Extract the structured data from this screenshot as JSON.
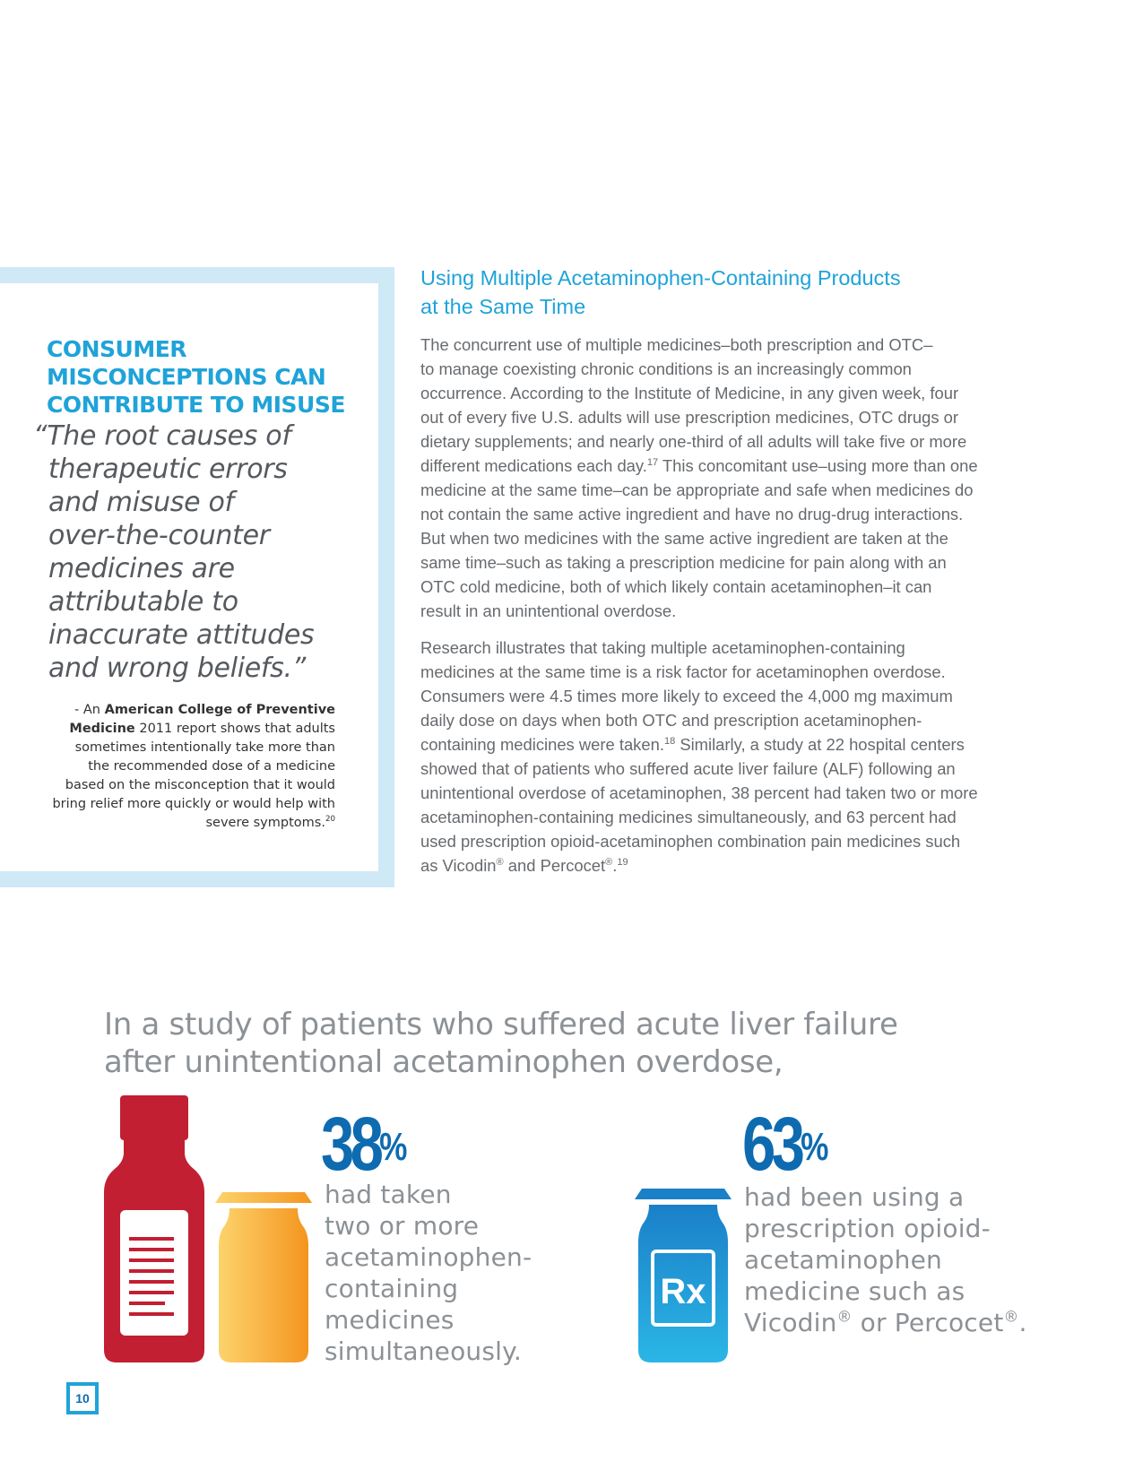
{
  "sidebar": {
    "heading_lines": [
      "CONSUMER",
      "MISCONCEPTIONS CAN",
      "CONTRIBUTE TO MISUSE"
    ],
    "quote_lines": [
      "“The root causes of",
      "therapeutic errors",
      "and misuse of",
      "over-the-counter",
      "medicines are",
      "attributable to",
      "inaccurate attitudes",
      "and wrong beliefs.”"
    ],
    "attribution": {
      "prefix": "- An ",
      "org": "American College of Preventive Medicine",
      "line1_rest": " 2011 report shows that adults",
      "lines": [
        "sometimes intentionally take more than",
        "the recommended dose of a medicine",
        "based on the misconception that it would",
        "bring relief more quickly or would help with",
        "severe symptoms."
      ],
      "footnote": "20"
    }
  },
  "article": {
    "title_lines": [
      "Using Multiple Acetaminophen-Containing Products",
      "at the Same Time"
    ],
    "p1": [
      "The concurrent use of multiple medicines–both prescription and OTC–",
      "to manage coexisting chronic conditions is an increasingly common",
      "occurrence. According to the Institute of Medicine, in any given week, four",
      "out of every five U.S. adults will use prescription medicines, OTC drugs or",
      "dietary supplements; and nearly one-third of all adults will take five or more"
    ],
    "p1_l6a": "different medications each day.",
    "p1_fn17": "17",
    "p1_l6b": " This concomitant use–using more than one",
    "p1_rest": [
      "medicine at the same time–can be appropriate and safe when medicines do",
      "not contain the same active ingredient and have no drug-drug interactions.",
      "But when two medicines with the same active ingredient are taken at the",
      "same time–such as taking a prescription medicine for pain along with an",
      "OTC cold medicine, both of which likely contain acetaminophen–it can",
      "result in an unintentional overdose."
    ],
    "p2": [
      "Research illustrates that taking multiple acetaminophen-containing",
      "medicines at the same time is a risk factor for acetaminophen overdose.",
      "Consumers were 4.5 times more likely to exceed the 4,000 mg maximum",
      "daily dose on days when both OTC and prescription acetaminophen-"
    ],
    "p2_l5a": "containing medicines were taken.",
    "p2_fn18": "18",
    "p2_l5b": " Similarly, a study at 22 hospital centers",
    "p2_rest": [
      "showed that of patients who suffered acute liver failure (ALF) following an",
      "unintentional overdose of acetaminophen, 38 percent had taken two or more",
      "acetaminophen-containing medicines simultaneously, and 63 percent had",
      "used prescription opioid-acetaminophen combination pain medicines such"
    ],
    "p2_last_a": "as Vicodin",
    "reg": "®",
    "p2_last_b": " and Percocet",
    "p2_last_c": ".",
    "p2_fn19": "19"
  },
  "stats": {
    "intro_lines": [
      "In a study of patients who suffered acute liver failure",
      "after unintentional acetaminophen overdose,"
    ],
    "left": {
      "value": "38",
      "unit": "%",
      "lines": [
        "had taken",
        "two or more",
        "acetaminophen-",
        "containing",
        "medicines",
        "simultaneously."
      ]
    },
    "right": {
      "value": "63",
      "unit": "%",
      "lines": [
        "had been using a",
        "prescription opioid-",
        "acetaminophen",
        "medicine such as"
      ],
      "last_a": "Vicodin",
      "last_b": " or Percocet",
      "last_c": "."
    },
    "rx_label": "Rx"
  },
  "page_number": "10",
  "colors": {
    "accent_blue": "#1fa3d8",
    "stat_blue": "#0e6bb0",
    "bottle_red": "#c21f32",
    "bottle_orange": "#f6a623",
    "bottle_blue": "#1d9ed9"
  }
}
